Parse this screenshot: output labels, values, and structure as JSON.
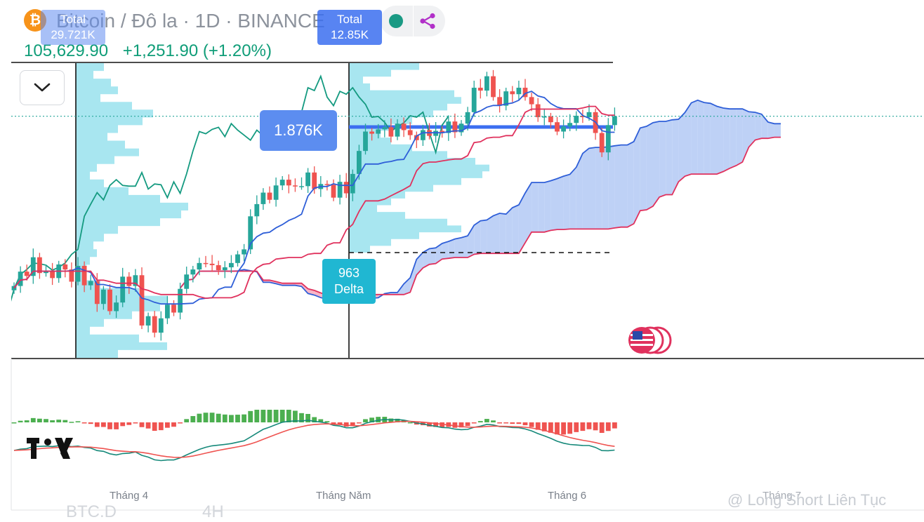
{
  "header": {
    "coin_icon": "bitcoin-icon",
    "symbol_title": "Bitcoin / Đô la · 1D · BINANCE",
    "last_price": "105,629.90",
    "change": "+1,251.90 (+1.20%)",
    "colors": {
      "up": "#0f9d78",
      "title": "#8c929c",
      "bitcoin": "#f7931a"
    }
  },
  "toolbar": {
    "collapse_icon": "chevron-down-icon",
    "status_icon": "green-dot-icon",
    "share_icon": "share-icon"
  },
  "annotations": {
    "profile_1_label": "Total",
    "profile_1_value": "29.721K",
    "profile_2_label": "Total",
    "profile_2_value": "12.85K",
    "poc_value": "1.876K",
    "delta_value": "963",
    "delta_label": "Delta"
  },
  "x_axis": {
    "ticks": [
      "Tháng 4",
      "Tháng Năm",
      "Tháng 6",
      "Tháng 7"
    ]
  },
  "watermark": "@ Long Short Liên Tục",
  "ghost_text": {
    "left": "BTC.D",
    "right": "4H"
  },
  "logo_icon": "tradingview-logo-icon",
  "flag_icon": "us-flag-events-icon",
  "chart_data": {
    "type": "candlestick",
    "price_close": [
      82000,
      84000,
      83400,
      86000,
      83800,
      84100,
      83100,
      85000,
      84300,
      82600,
      84800,
      82100,
      82700,
      79500,
      81500,
      78500,
      79700,
      83300,
      82000,
      83500,
      76500,
      77800,
      75500,
      77500,
      79400,
      78300,
      81600,
      83600,
      84300,
      85200,
      85100,
      84900,
      84200,
      84600,
      85200,
      86400,
      87100,
      91700,
      93400,
      95000,
      94000,
      96000,
      96800,
      96000,
      95900,
      95900,
      97800,
      95500,
      96200,
      96100,
      94300,
      96500,
      94900,
      97600,
      100800,
      103500,
      103200,
      103800,
      104100,
      102800,
      104600,
      103700,
      103000,
      102300,
      103700,
      102900,
      103600,
      103300,
      104900,
      103400,
      104600,
      106200,
      109600,
      109200,
      111200,
      108300,
      107100,
      109100,
      108700,
      109600,
      108300,
      107300,
      105500,
      105600,
      104800,
      103500,
      104200,
      104700,
      105700,
      105500,
      106200,
      103300,
      100600,
      104400,
      105629.9
    ],
    "colors": {
      "candle_up": "#26a69a",
      "candle_down": "#ef5350",
      "ichimoku_bull_cloud": "#b3c9f5",
      "ichimoku_bear_cloud": "#f7a8bd",
      "conversion_line": "#2f5fd8",
      "base_line": "#e0315d",
      "lagging_span": "#149a80",
      "volume_profile": "#9fe3ee",
      "macd_line": "#16897a",
      "signal_line": "#ef5350",
      "histogram_up": "#4caf50",
      "histogram_down": "#ef5350"
    }
  }
}
